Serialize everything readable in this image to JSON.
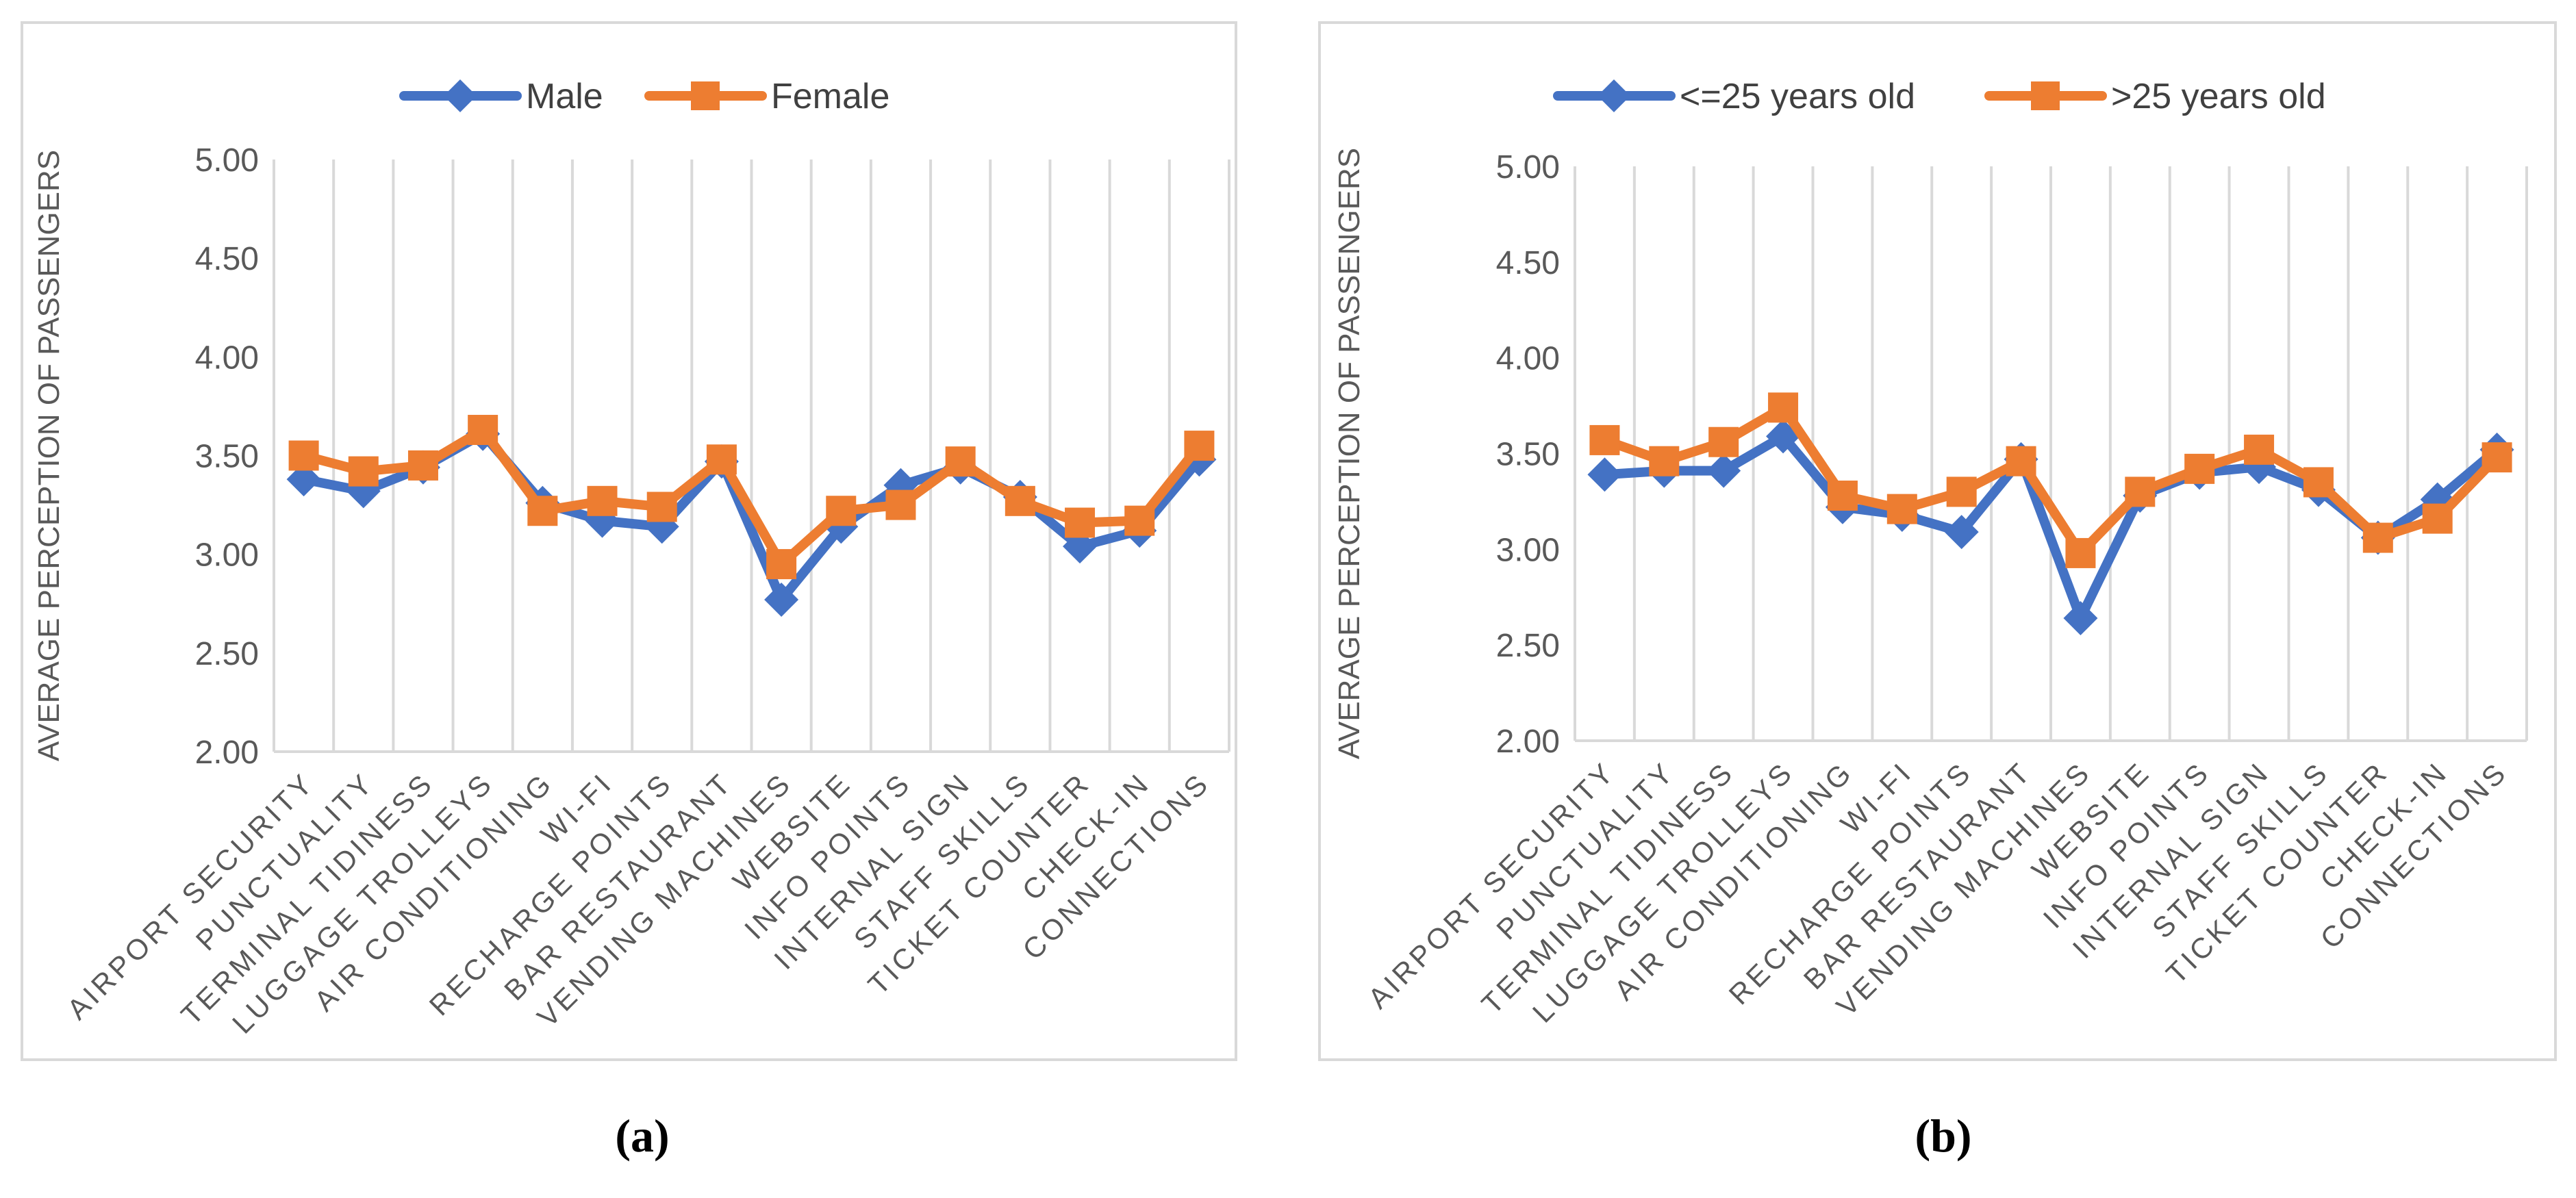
{
  "captions": [
    "(a)",
    "(b)"
  ],
  "chart_data": [
    {
      "type": "line",
      "ylabel": "AVERAGE PERCEPTION OF PASSENGERS",
      "ylim": [
        2.0,
        5.0
      ],
      "yticks": [
        "2.00",
        "2.50",
        "3.00",
        "3.50",
        "4.00",
        "4.50",
        "5.00"
      ],
      "grid": "vertical",
      "legend": "top",
      "categories": [
        "AIRPORT SECURITY",
        "PUNCTUALITY",
        "TERMINAL TIDINESS",
        "LUGGAGE TROLLEYS",
        "AIR CONDITIONING",
        "WI-FI",
        "RECHARGE POINTS",
        "BAR RESTAURANT",
        "VENDING MACHINES",
        "WEBSITE",
        "INFO POINTS",
        "INTERNAL SIGN",
        "STAFF SKILLS",
        "TICKET COUNTER",
        "CHECK-IN",
        "CONNECTIONS"
      ],
      "series": [
        {
          "name": "Male",
          "marker": "diamond",
          "color": "#4472C4",
          "values": [
            3.38,
            3.32,
            3.44,
            3.61,
            3.26,
            3.17,
            3.14,
            3.47,
            2.77,
            3.14,
            3.35,
            3.44,
            3.29,
            3.04,
            3.12,
            3.48
          ]
        },
        {
          "name": "Female",
          "marker": "square",
          "color": "#ED7D31",
          "values": [
            3.5,
            3.42,
            3.45,
            3.63,
            3.22,
            3.27,
            3.24,
            3.48,
            2.95,
            3.22,
            3.25,
            3.47,
            3.27,
            3.16,
            3.17,
            3.55
          ]
        }
      ]
    },
    {
      "type": "line",
      "ylabel": "AVERAGE PERCEPTION OF PASSENGERS",
      "ylim": [
        2.0,
        5.0
      ],
      "yticks": [
        "2.00",
        "2.50",
        "3.00",
        "3.50",
        "4.00",
        "4.50",
        "5.00"
      ],
      "grid": "vertical",
      "legend": "top",
      "categories": [
        "AIRPORT SECURITY",
        "PUNCTUALITY",
        "TERMINAL TIDINESS",
        "LUGGAGE TROLLEYS",
        "AIR CONDITIONING",
        "WI-FI",
        "RECHARGE POINTS",
        "BAR RESTAURANT",
        "VENDING MACHINES",
        "WEBSITE",
        "INFO POINTS",
        "INTERNAL SIGN",
        "STAFF SKILLS",
        "TICKET COUNTER",
        "CHECK-IN",
        "CONNECTIONS"
      ],
      "series": [
        {
          "name": "<=25 years old",
          "marker": "diamond",
          "color": "#4472C4",
          "values": [
            3.39,
            3.41,
            3.41,
            3.59,
            3.22,
            3.18,
            3.09,
            3.47,
            2.64,
            3.28,
            3.4,
            3.43,
            3.31,
            3.06,
            3.26,
            3.52
          ]
        },
        {
          "name": ">25 years old",
          "marker": "square",
          "color": "#ED7D31",
          "values": [
            3.57,
            3.46,
            3.56,
            3.74,
            3.28,
            3.21,
            3.3,
            3.46,
            2.98,
            3.3,
            3.42,
            3.52,
            3.35,
            3.06,
            3.16,
            3.48
          ]
        }
      ]
    }
  ]
}
